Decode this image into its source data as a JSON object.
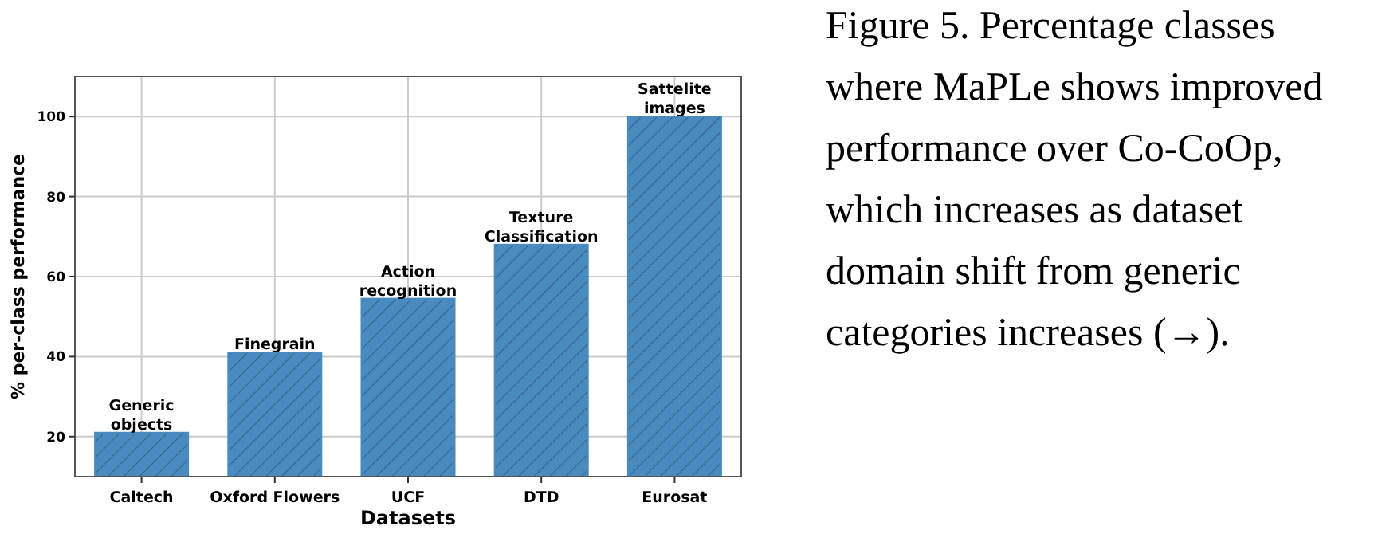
{
  "chart_data": {
    "type": "bar",
    "categories": [
      "Caltech",
      "Oxford Flowers",
      "UCF",
      "DTD",
      "Eurosat"
    ],
    "values": [
      21,
      41,
      54.5,
      68,
      100
    ],
    "color": "#4a8bbf",
    "ylim": [
      10,
      110
    ],
    "yticks": [
      20,
      40,
      60,
      80,
      100
    ],
    "xlabel": "Datasets",
    "ylabel": "% per-class performance",
    "grid": true,
    "annotations": [
      {
        "text": "Generic objects",
        "x": "Caltech",
        "y": 21
      },
      {
        "text": "Finegrain",
        "x": "Oxford Flowers",
        "y": 41
      },
      {
        "text": "Action recognition",
        "x": "UCF",
        "y": 54.5
      },
      {
        "text": "Texture Classification",
        "x": "DTD",
        "y": 68
      },
      {
        "text": "Sattelite images",
        "x": "Eurosat",
        "y": 100
      },
      "Figure 5. Percentage classes where MaPLe shows improved performance over Co-CoOp, which increases as dataset domain shift from generic categories increases (→)."
    ]
  }
}
